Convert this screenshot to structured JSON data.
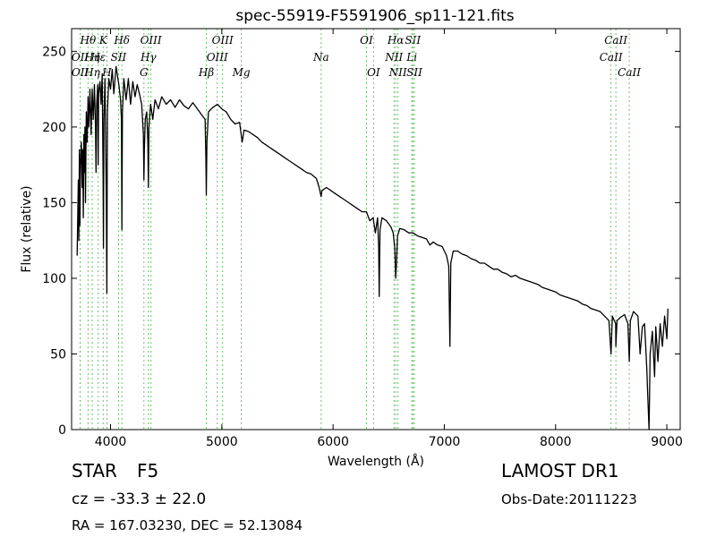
{
  "chart_data": {
    "type": "line",
    "title": "spec-55919-F5591906_sp11-121.fits",
    "xlabel": "Wavelength (Å)",
    "ylabel": "Flux (relative)",
    "xlim": [
      3650,
      9120
    ],
    "ylim": [
      0,
      265
    ],
    "xticks": [
      4000,
      5000,
      6000,
      7000,
      8000,
      9000
    ],
    "yticks": [
      0,
      50,
      100,
      150,
      200,
      250
    ],
    "grid": false,
    "series": [
      {
        "points": [
          [
            3700,
            115
          ],
          [
            3710,
            165
          ],
          [
            3715,
            125
          ],
          [
            3720,
            185
          ],
          [
            3725,
            135
          ],
          [
            3730,
            175
          ],
          [
            3738,
            190
          ],
          [
            3745,
            160
          ],
          [
            3750,
            185
          ],
          [
            3755,
            140
          ],
          [
            3760,
            195
          ],
          [
            3765,
            170
          ],
          [
            3770,
            200
          ],
          [
            3775,
            150
          ],
          [
            3782,
            210
          ],
          [
            3790,
            190
          ],
          [
            3798,
            220
          ],
          [
            3805,
            200
          ],
          [
            3815,
            225
          ],
          [
            3825,
            195
          ],
          [
            3835,
            225
          ],
          [
            3845,
            205
          ],
          [
            3855,
            228
          ],
          [
            3865,
            200
          ],
          [
            3870,
            170
          ],
          [
            3875,
            215
          ],
          [
            3885,
            228
          ],
          [
            3889,
            175
          ],
          [
            3893,
            222
          ],
          [
            3905,
            230
          ],
          [
            3915,
            215
          ],
          [
            3925,
            235
          ],
          [
            3933,
            165
          ],
          [
            3936,
            120
          ],
          [
            3940,
            205
          ],
          [
            3950,
            232
          ],
          [
            3962,
            150
          ],
          [
            3967,
            90
          ],
          [
            3972,
            210
          ],
          [
            3985,
            232
          ],
          [
            4000,
            225
          ],
          [
            4015,
            238
          ],
          [
            4030,
            222
          ],
          [
            4050,
            240
          ],
          [
            4075,
            228
          ],
          [
            4090,
            218
          ],
          [
            4098,
            205
          ],
          [
            4102,
            132
          ],
          [
            4107,
            210
          ],
          [
            4120,
            232
          ],
          [
            4140,
            218
          ],
          [
            4160,
            232
          ],
          [
            4180,
            215
          ],
          [
            4200,
            230
          ],
          [
            4220,
            220
          ],
          [
            4240,
            228
          ],
          [
            4260,
            222
          ],
          [
            4280,
            215
          ],
          [
            4295,
            195
          ],
          [
            4300,
            165
          ],
          [
            4304,
            185
          ],
          [
            4312,
            205
          ],
          [
            4325,
            210
          ],
          [
            4335,
            190
          ],
          [
            4340,
            160
          ],
          [
            4345,
            200
          ],
          [
            4360,
            215
          ],
          [
            4380,
            205
          ],
          [
            4400,
            218
          ],
          [
            4430,
            212
          ],
          [
            4460,
            220
          ],
          [
            4500,
            215
          ],
          [
            4540,
            218
          ],
          [
            4580,
            213
          ],
          [
            4620,
            218
          ],
          [
            4660,
            214
          ],
          [
            4700,
            212
          ],
          [
            4740,
            216
          ],
          [
            4780,
            212
          ],
          [
            4820,
            208
          ],
          [
            4850,
            205
          ],
          [
            4857,
            180
          ],
          [
            4861,
            155
          ],
          [
            4866,
            190
          ],
          [
            4880,
            210
          ],
          [
            4920,
            213
          ],
          [
            4960,
            215
          ],
          [
            5000,
            212
          ],
          [
            5040,
            210
          ],
          [
            5080,
            205
          ],
          [
            5120,
            202
          ],
          [
            5160,
            203
          ],
          [
            5183,
            190
          ],
          [
            5200,
            198
          ],
          [
            5240,
            197
          ],
          [
            5280,
            195
          ],
          [
            5320,
            193
          ],
          [
            5360,
            190
          ],
          [
            5400,
            188
          ],
          [
            5440,
            186
          ],
          [
            5480,
            184
          ],
          [
            5520,
            182
          ],
          [
            5560,
            180
          ],
          [
            5600,
            178
          ],
          [
            5640,
            176
          ],
          [
            5680,
            174
          ],
          [
            5720,
            172
          ],
          [
            5760,
            170
          ],
          [
            5800,
            169
          ],
          [
            5850,
            166
          ],
          [
            5875,
            160
          ],
          [
            5893,
            154
          ],
          [
            5900,
            158
          ],
          [
            5940,
            160
          ],
          [
            5980,
            158
          ],
          [
            6020,
            156
          ],
          [
            6060,
            154
          ],
          [
            6100,
            152
          ],
          [
            6140,
            150
          ],
          [
            6180,
            148
          ],
          [
            6220,
            146
          ],
          [
            6260,
            144
          ],
          [
            6300,
            144
          ],
          [
            6330,
            138
          ],
          [
            6360,
            140
          ],
          [
            6380,
            130
          ],
          [
            6400,
            140
          ],
          [
            6410,
            120
          ],
          [
            6415,
            88
          ],
          [
            6422,
            132
          ],
          [
            6440,
            140
          ],
          [
            6480,
            138
          ],
          [
            6520,
            134
          ],
          [
            6540,
            130
          ],
          [
            6555,
            120
          ],
          [
            6563,
            100
          ],
          [
            6570,
            110
          ],
          [
            6580,
            128
          ],
          [
            6600,
            133
          ],
          [
            6640,
            132
          ],
          [
            6680,
            130
          ],
          [
            6720,
            130
          ],
          [
            6760,
            128
          ],
          [
            6800,
            127
          ],
          [
            6840,
            126
          ],
          [
            6870,
            122
          ],
          [
            6900,
            124
          ],
          [
            6940,
            122
          ],
          [
            6980,
            121
          ],
          [
            7000,
            118
          ],
          [
            7020,
            115
          ],
          [
            7040,
            108
          ],
          [
            7050,
            55
          ],
          [
            7058,
            110
          ],
          [
            7080,
            118
          ],
          [
            7120,
            118
          ],
          [
            7160,
            116
          ],
          [
            7200,
            115
          ],
          [
            7240,
            113
          ],
          [
            7280,
            112
          ],
          [
            7320,
            110
          ],
          [
            7360,
            110
          ],
          [
            7400,
            108
          ],
          [
            7440,
            106
          ],
          [
            7480,
            106
          ],
          [
            7520,
            104
          ],
          [
            7560,
            103
          ],
          [
            7600,
            101
          ],
          [
            7640,
            102
          ],
          [
            7680,
            100
          ],
          [
            7720,
            99
          ],
          [
            7760,
            98
          ],
          [
            7800,
            97
          ],
          [
            7840,
            96
          ],
          [
            7880,
            94
          ],
          [
            7920,
            93
          ],
          [
            7960,
            92
          ],
          [
            8000,
            91
          ],
          [
            8040,
            89
          ],
          [
            8080,
            88
          ],
          [
            8120,
            87
          ],
          [
            8160,
            86
          ],
          [
            8200,
            85
          ],
          [
            8240,
            83
          ],
          [
            8280,
            82
          ],
          [
            8320,
            80
          ],
          [
            8360,
            79
          ],
          [
            8400,
            78
          ],
          [
            8440,
            75
          ],
          [
            8480,
            72
          ],
          [
            8498,
            50
          ],
          [
            8510,
            75
          ],
          [
            8540,
            70
          ],
          [
            8542,
            55
          ],
          [
            8552,
            72
          ],
          [
            8580,
            74
          ],
          [
            8620,
            76
          ],
          [
            8650,
            70
          ],
          [
            8662,
            45
          ],
          [
            8672,
            72
          ],
          [
            8700,
            78
          ],
          [
            8740,
            75
          ],
          [
            8760,
            50
          ],
          [
            8780,
            68
          ],
          [
            8800,
            70
          ],
          [
            8820,
            40
          ],
          [
            8830,
            20
          ],
          [
            8840,
            0
          ],
          [
            8850,
            50
          ],
          [
            8870,
            65
          ],
          [
            8890,
            35
          ],
          [
            8900,
            68
          ],
          [
            8920,
            45
          ],
          [
            8940,
            70
          ],
          [
            8960,
            55
          ],
          [
            8980,
            75
          ],
          [
            9000,
            60
          ],
          [
            9010,
            80
          ]
        ]
      }
    ],
    "spectral_lines": [
      {
        "label": "Hθ",
        "x": 3798,
        "row": 0
      },
      {
        "label": "K",
        "x": 3934,
        "row": 0
      },
      {
        "label": "Hδ",
        "x": 4102,
        "row": 0
      },
      {
        "label": "OIII",
        "x": 4363,
        "row": 0
      },
      {
        "label": "OIII",
        "x": 5007,
        "row": 0
      },
      {
        "label": "OI",
        "x": 6300,
        "row": 0
      },
      {
        "label": "Hα",
        "x": 6563,
        "row": 0
      },
      {
        "label": "SII",
        "x": 6717,
        "row": 0
      },
      {
        "label": "CaII",
        "x": 8542,
        "row": 0
      },
      {
        "label": "OII",
        "x": 3727,
        "row": 1
      },
      {
        "label": "Hε",
        "x": 3889,
        "row": 1
      },
      {
        "label": "Hη",
        "x": 3835,
        "row": 1
      },
      {
        "label": "SII",
        "x": 4072,
        "row": 1
      },
      {
        "label": "Hγ",
        "x": 4340,
        "row": 1
      },
      {
        "label": "OIII",
        "x": 4959,
        "row": 1
      },
      {
        "label": "Na",
        "x": 5893,
        "row": 1
      },
      {
        "label": "NII",
        "x": 6548,
        "row": 1
      },
      {
        "label": "Li",
        "x": 6708,
        "row": 1
      },
      {
        "label": "CaII",
        "x": 8498,
        "row": 1
      },
      {
        "label": "OII",
        "x": 3727,
        "row": 2
      },
      {
        "label": "Hη",
        "x": 3835,
        "row": 2
      },
      {
        "label": "H",
        "x": 3968,
        "row": 2
      },
      {
        "label": "G",
        "x": 4300,
        "row": 2
      },
      {
        "label": "Hβ",
        "x": 4861,
        "row": 2
      },
      {
        "label": "Mg",
        "x": 5175,
        "row": 2
      },
      {
        "label": "OI",
        "x": 6364,
        "row": 2
      },
      {
        "label": "NII",
        "x": 6583,
        "row": 2
      },
      {
        "label": "SII",
        "x": 6731,
        "row": 2
      },
      {
        "label": "CaII",
        "x": 8662,
        "row": 2
      }
    ],
    "line_marker_color": "#6dbf6d",
    "spectrum_color": "#000000"
  },
  "footer": {
    "object_class": "STAR",
    "subclass": "F5",
    "cz": "cz = -33.3 ± 22.0",
    "coords": "RA = 167.03230, DEC = 52.13084",
    "survey": "LAMOST DR1",
    "obs_date": "Obs-Date:20111223"
  }
}
